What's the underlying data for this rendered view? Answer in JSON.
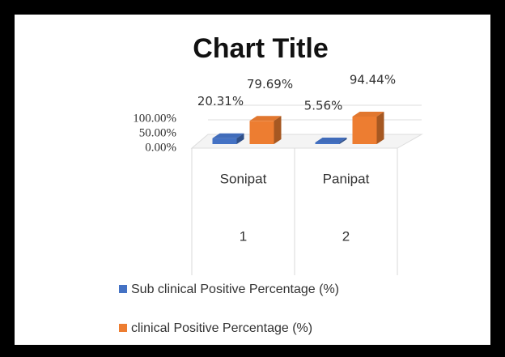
{
  "chart_data": {
    "type": "bar3d",
    "title": "Chart Title",
    "categories": [
      "Sonipat",
      "Panipat"
    ],
    "category_ids": [
      "1",
      "2"
    ],
    "series": [
      {
        "name": "Sub clinical Positive Percentage (%)",
        "color": "#4472c4",
        "values": [
          20.31,
          5.56
        ],
        "value_labels": [
          "20.31%",
          "5.56%"
        ]
      },
      {
        "name": "clinical Positive Percentage (%)",
        "color": "#ed7d31",
        "values": [
          79.69,
          94.44
        ],
        "value_labels": [
          "79.69%",
          "94.44%"
        ]
      }
    ],
    "ylim": [
      0,
      100
    ],
    "yticks": [
      {
        "value": 0,
        "label": "0.00%"
      },
      {
        "value": 50,
        "label": "50.00%"
      },
      {
        "value": 100,
        "label": "100.00%"
      }
    ],
    "grid": true,
    "legend": "bottom"
  }
}
